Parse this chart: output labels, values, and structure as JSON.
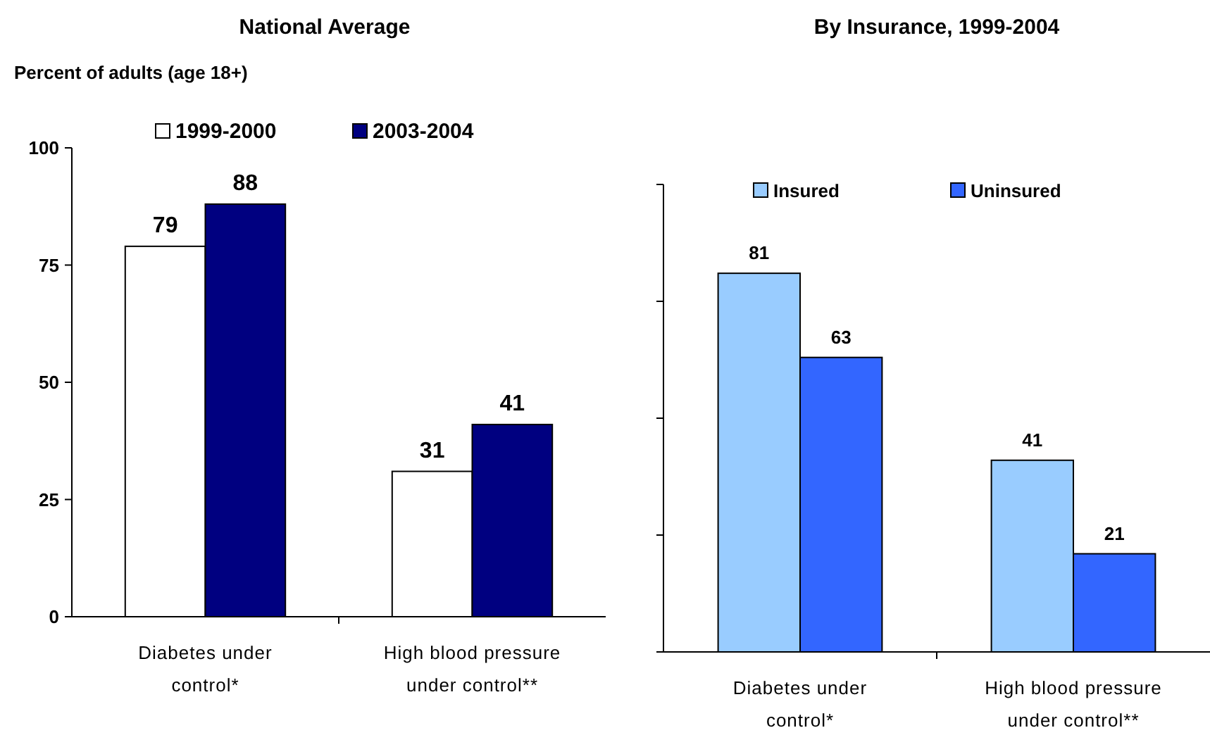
{
  "chart_data": [
    {
      "type": "bar",
      "title": "National Average",
      "ylabel": "Percent of adults (age 18+)",
      "categories": [
        "Diabetes under control*",
        "High blood pressure under control**"
      ],
      "series": [
        {
          "name": "1999-2000",
          "color": "#ffffff",
          "values": [
            79,
            31
          ]
        },
        {
          "name": "2003-2004",
          "color": "#000080",
          "values": [
            88,
            41
          ]
        }
      ],
      "ylim": [
        0,
        100
      ],
      "yticks": [
        0,
        25,
        50,
        75,
        100
      ],
      "grid": false,
      "legend": "top",
      "data_labels": true
    },
    {
      "type": "bar",
      "title": "By Insurance, 1999-2004",
      "categories": [
        "Diabetes under control*",
        "High blood pressure under control**"
      ],
      "series": [
        {
          "name": "Insured",
          "color": "#99ccff",
          "values": [
            81,
            41
          ]
        },
        {
          "name": "Uninsured",
          "color": "#3366ff",
          "values": [
            63,
            21
          ]
        }
      ],
      "ylim": [
        0,
        100
      ],
      "yticks": [
        {
          "value": 0,
          "label": null
        },
        {
          "value": 25,
          "label": null
        },
        {
          "value": 50,
          "label": null
        },
        {
          "value": 75,
          "label": null
        },
        {
          "value": 100,
          "label": null
        }
      ],
      "grid": false,
      "legend": "top",
      "data_labels": true
    }
  ]
}
